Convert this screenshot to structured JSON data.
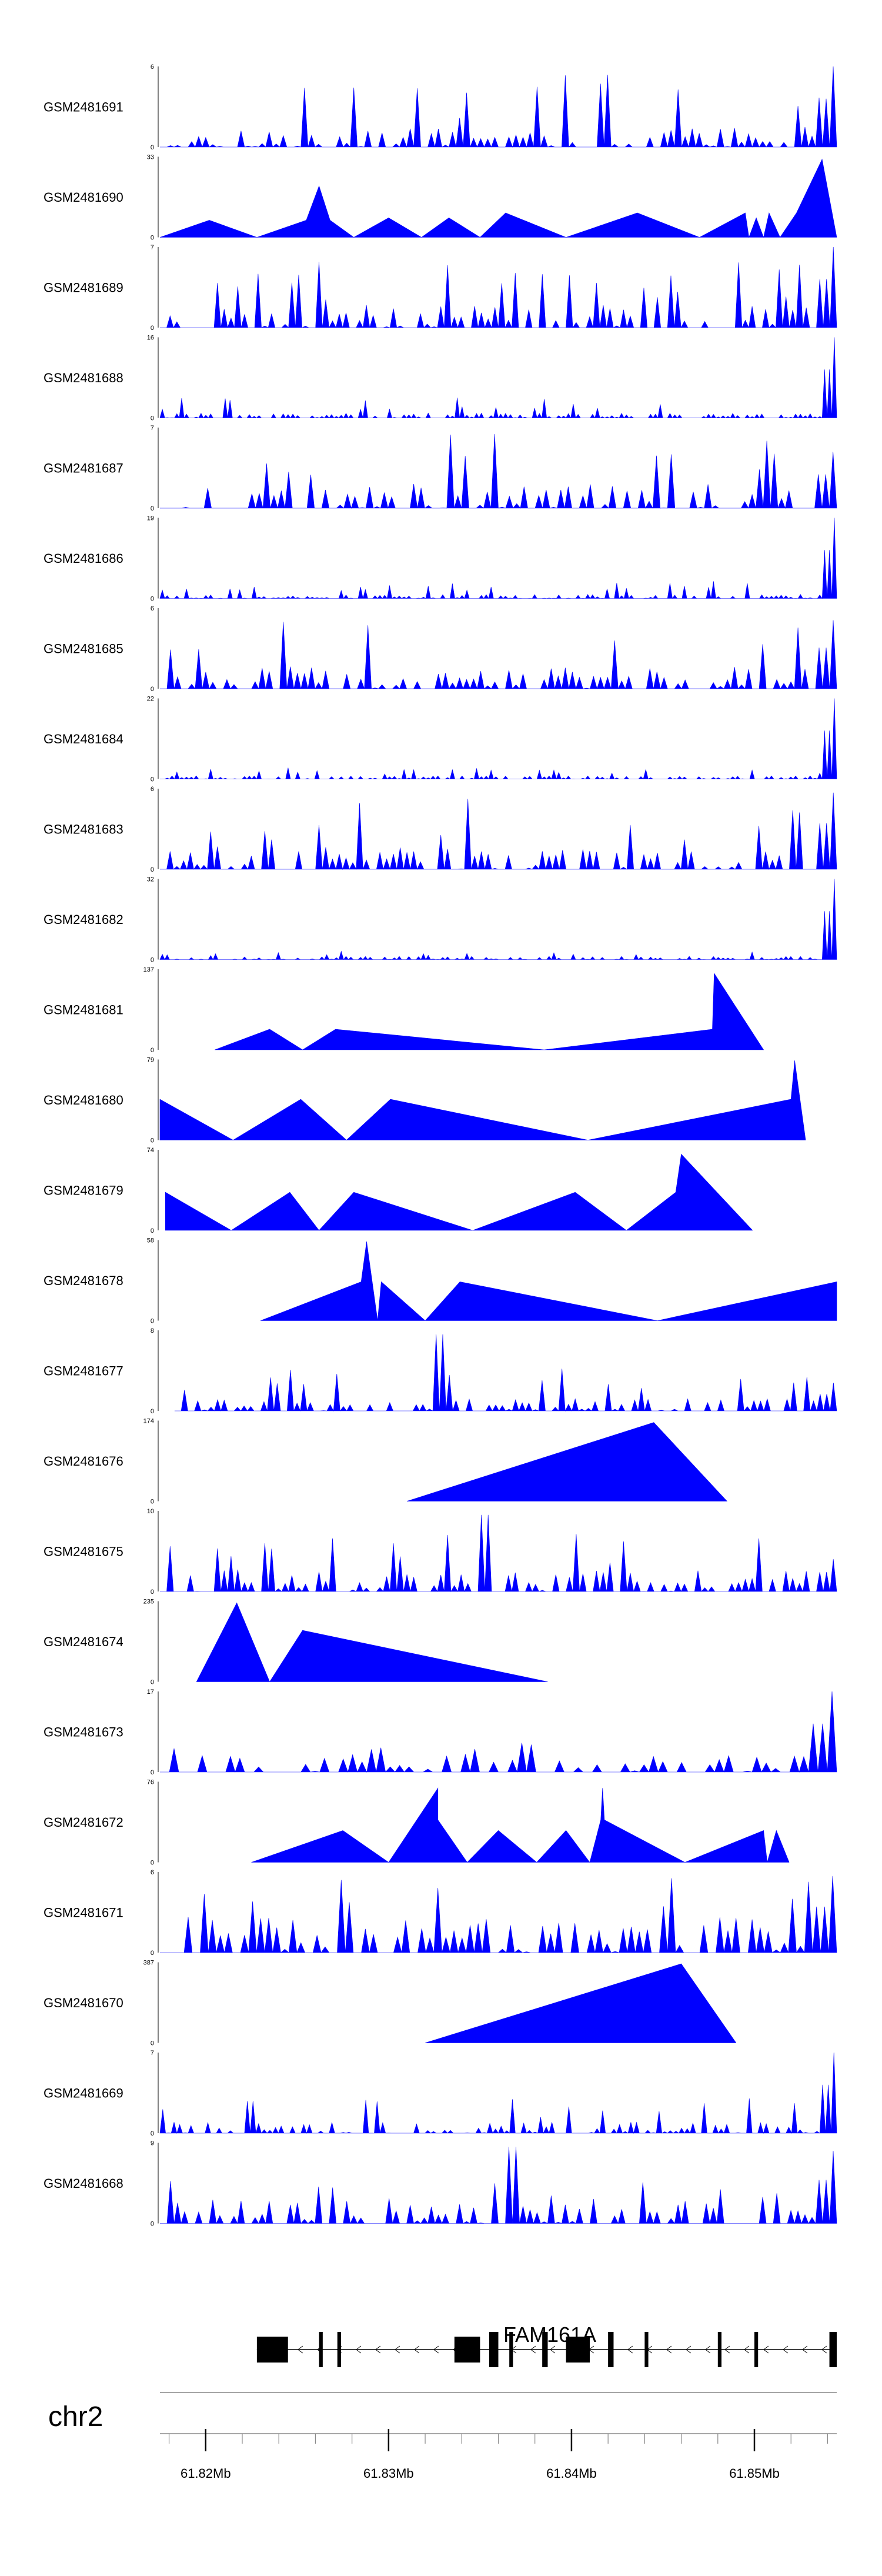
{
  "colors": {
    "signal": "#0000ff",
    "axis": "#000000",
    "gene": "#000000",
    "chrom_line": "#888888"
  },
  "chart_data": {
    "type": "area",
    "chromosome": "chr2",
    "xlim": [
      61.8175,
      61.8545
    ],
    "x_ticks": [
      61.82,
      61.83,
      61.84,
      61.85
    ],
    "x_tick_labels": [
      "61.82Mb",
      "61.83Mb",
      "61.84Mb",
      "61.85Mb"
    ],
    "gene": {
      "name": "FAM161A",
      "strand": "-",
      "start": 61.8228,
      "end": 61.8545,
      "exons": [
        [
          61.8228,
          61.8245
        ],
        [
          61.8262,
          61.8264
        ],
        [
          61.8272,
          61.8274
        ],
        [
          61.8336,
          61.835
        ],
        [
          61.8355,
          61.836
        ],
        [
          61.8366,
          61.8368
        ],
        [
          61.8384,
          61.8387
        ],
        [
          61.8397,
          61.841
        ],
        [
          61.842,
          61.8423
        ],
        [
          61.844,
          61.8442
        ],
        [
          61.848,
          61.8482
        ],
        [
          61.85,
          61.8502
        ],
        [
          61.8541,
          61.8545
        ]
      ]
    },
    "series": [
      {
        "name": "GSM2481691",
        "ymax": 6,
        "kind": "noisy",
        "density": 96,
        "base": 0.25,
        "spike": 0.9,
        "end": 1.0,
        "seed": 11
      },
      {
        "name": "GSM2481690",
        "ymax": 33,
        "kind": "peaks",
        "points": [
          [
            61.8175,
            0
          ],
          [
            61.8202,
            7
          ],
          [
            61.8228,
            0
          ],
          [
            61.8255,
            7
          ],
          [
            61.8262,
            21
          ],
          [
            61.8268,
            7
          ],
          [
            61.8281,
            0
          ],
          [
            61.83,
            8
          ],
          [
            61.8318,
            0
          ],
          [
            61.8333,
            8
          ],
          [
            61.835,
            0
          ],
          [
            61.8364,
            10
          ],
          [
            61.8397,
            0
          ],
          [
            61.8436,
            10
          ],
          [
            61.847,
            0
          ],
          [
            61.8495,
            10
          ],
          [
            61.8497,
            0
          ],
          [
            61.8501,
            8
          ],
          [
            61.8505,
            0
          ],
          [
            61.8508,
            10
          ],
          [
            61.8514,
            0
          ],
          [
            61.8523,
            10
          ],
          [
            61.8537,
            32
          ],
          [
            61.8545,
            0
          ]
        ]
      },
      {
        "name": "GSM2481689",
        "ymax": 7,
        "kind": "noisy",
        "density": 100,
        "base": 0.28,
        "spike": 0.85,
        "end": 1.0,
        "seed": 23
      },
      {
        "name": "GSM2481688",
        "ymax": 16,
        "kind": "noisy",
        "density": 140,
        "base": 0.06,
        "spike": 0.25,
        "end": 1.0,
        "seed": 31
      },
      {
        "name": "GSM2481687",
        "ymax": 7,
        "kind": "noisy",
        "density": 92,
        "base": 0.3,
        "spike": 0.95,
        "end": 0.7,
        "seed": 43
      },
      {
        "name": "GSM2481686",
        "ymax": 19,
        "kind": "noisy",
        "density": 140,
        "base": 0.05,
        "spike": 0.22,
        "end": 1.0,
        "seed": 53
      },
      {
        "name": "GSM2481685",
        "ymax": 6,
        "kind": "noisy",
        "density": 96,
        "base": 0.28,
        "spike": 0.9,
        "end": 0.85,
        "seed": 61
      },
      {
        "name": "GSM2481684",
        "ymax": 22,
        "kind": "noisy",
        "density": 140,
        "base": 0.04,
        "spike": 0.14,
        "end": 1.0,
        "seed": 71
      },
      {
        "name": "GSM2481683",
        "ymax": 6,
        "kind": "noisy",
        "density": 100,
        "base": 0.3,
        "spike": 0.9,
        "end": 0.95,
        "seed": 83
      },
      {
        "name": "GSM2481682",
        "ymax": 32,
        "kind": "noisy",
        "density": 140,
        "base": 0.04,
        "spike": 0.12,
        "end": 1.0,
        "seed": 97
      },
      {
        "name": "GSM2481681",
        "ymax": 137,
        "kind": "peaks",
        "points": [
          [
            61.8205,
            0
          ],
          [
            61.8235,
            35
          ],
          [
            61.8253,
            0
          ],
          [
            61.8271,
            35
          ],
          [
            61.8385,
            0
          ],
          [
            61.8477,
            35
          ],
          [
            61.8478,
            130
          ],
          [
            61.8505,
            0
          ]
        ]
      },
      {
        "name": "GSM2481680",
        "ymax": 79,
        "kind": "peaks",
        "points": [
          [
            61.8175,
            40
          ],
          [
            61.8215,
            0
          ],
          [
            61.8252,
            40
          ],
          [
            61.8277,
            0
          ],
          [
            61.8301,
            40
          ],
          [
            61.8409,
            0
          ],
          [
            61.852,
            40
          ],
          [
            61.8522,
            78
          ],
          [
            61.8528,
            0
          ]
        ]
      },
      {
        "name": "GSM2481679",
        "ymax": 74,
        "kind": "peaks",
        "points": [
          [
            61.8178,
            35
          ],
          [
            61.8214,
            0
          ],
          [
            61.8246,
            35
          ],
          [
            61.8262,
            0
          ],
          [
            61.8281,
            35
          ],
          [
            61.8346,
            0
          ],
          [
            61.8402,
            35
          ],
          [
            61.843,
            0
          ],
          [
            61.8457,
            35
          ],
          [
            61.846,
            70
          ],
          [
            61.8499,
            0
          ]
        ]
      },
      {
        "name": "GSM2481678",
        "ymax": 58,
        "kind": "peaks",
        "points": [
          [
            61.823,
            0
          ],
          [
            61.8285,
            28
          ],
          [
            61.8288,
            57
          ],
          [
            61.8294,
            0
          ],
          [
            61.8296,
            28
          ],
          [
            61.832,
            0
          ],
          [
            61.8339,
            28
          ],
          [
            61.8447,
            0
          ],
          [
            61.8545,
            28
          ],
          [
            61.8545,
            0
          ]
        ]
      },
      {
        "name": "GSM2481677",
        "ymax": 8,
        "kind": "noisy",
        "density": 100,
        "base": 0.15,
        "spike": 0.55,
        "end": 0.35,
        "seed": 109,
        "from": 61.8183,
        "feature": [
          61.8325,
          0.95
        ]
      },
      {
        "name": "GSM2481676",
        "ymax": 174,
        "kind": "peaks",
        "points": [
          [
            61.831,
            0
          ],
          [
            61.8445,
            170
          ],
          [
            61.8485,
            0
          ]
        ]
      },
      {
        "name": "GSM2481675",
        "ymax": 10,
        "kind": "noisy",
        "density": 100,
        "base": 0.28,
        "spike": 0.75,
        "end": 0.4,
        "seed": 127,
        "feature": [
          61.835,
          0.95
        ]
      },
      {
        "name": "GSM2481674",
        "ymax": 235,
        "kind": "peaks",
        "points": [
          [
            61.8195,
            0
          ],
          [
            61.8217,
            230
          ],
          [
            61.8235,
            0
          ],
          [
            61.8253,
            150
          ],
          [
            61.8387,
            0
          ]
        ]
      },
      {
        "name": "GSM2481673",
        "ymax": 17,
        "kind": "noisy",
        "density": 72,
        "base": 0.22,
        "spike": 0.4,
        "end": 1.0,
        "seed": 139
      },
      {
        "name": "GSM2481672",
        "ymax": 76,
        "kind": "peaks",
        "points": [
          [
            61.8225,
            0
          ],
          [
            61.8275,
            30
          ],
          [
            61.83,
            0
          ],
          [
            61.8327,
            70
          ],
          [
            61.8327,
            40
          ],
          [
            61.8343,
            0
          ],
          [
            61.836,
            30
          ],
          [
            61.8381,
            0
          ],
          [
            61.8397,
            30
          ],
          [
            61.841,
            0
          ],
          [
            61.8416,
            40
          ],
          [
            61.8417,
            70
          ],
          [
            61.8418,
            40
          ],
          [
            61.8462,
            0
          ],
          [
            61.8505,
            30
          ],
          [
            61.8507,
            0
          ],
          [
            61.8512,
            30
          ],
          [
            61.8519,
            0
          ]
        ]
      },
      {
        "name": "GSM2481671",
        "ymax": 6,
        "kind": "noisy",
        "density": 84,
        "base": 0.45,
        "spike": 0.95,
        "end": 0.95,
        "seed": 151
      },
      {
        "name": "GSM2481670",
        "ymax": 387,
        "kind": "peaks",
        "points": [
          [
            61.832,
            0
          ],
          [
            61.846,
            380
          ],
          [
            61.849,
            0
          ]
        ]
      },
      {
        "name": "GSM2481669",
        "ymax": 7,
        "kind": "noisy",
        "density": 120,
        "base": 0.14,
        "spike": 0.45,
        "end": 1.0,
        "seed": 163
      },
      {
        "name": "GSM2481668",
        "ymax": 9,
        "kind": "noisy",
        "density": 96,
        "base": 0.28,
        "spike": 0.65,
        "end": 0.9,
        "seed": 173,
        "feature": [
          61.8365,
          0.95
        ]
      }
    ]
  }
}
